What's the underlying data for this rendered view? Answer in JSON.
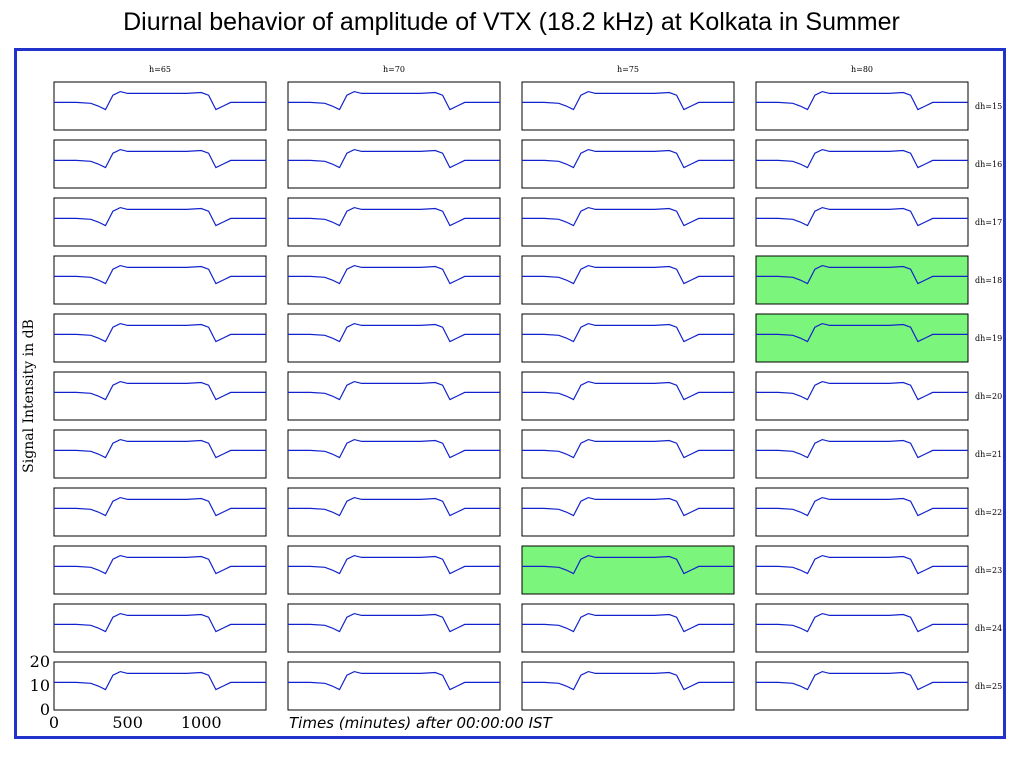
{
  "title": "Diurnal behavior of amplitude of VTX (18.2 kHz) at Kolkata in Summer",
  "colors": {
    "frame": "#2233cc",
    "line": "#1122cc",
    "highlight": "#7cf57c"
  },
  "chart_data": {
    "type": "line",
    "layout": "grid",
    "columns": [
      "h=65",
      "h=70",
      "h=75",
      "h=80"
    ],
    "rows": [
      "dh=15",
      "dh=16",
      "dh=17",
      "dh=18",
      "dh=19",
      "dh=20",
      "dh=21",
      "dh=22",
      "dh=23",
      "dh=24",
      "dh=25"
    ],
    "highlighted_panels": [
      {
        "column": "h=80",
        "row": "dh=18"
      },
      {
        "column": "h=80",
        "row": "dh=19"
      },
      {
        "column": "h=75",
        "row": "dh=23"
      }
    ],
    "ylabel": "Signal Intensity in dB",
    "xlabel": "Times (minutes) after 00:00:00 IST",
    "xlim": [
      0,
      1440
    ],
    "ylim": [
      0,
      20
    ],
    "xticks": [
      "0",
      "500",
      "1000"
    ],
    "yticks": [
      "20",
      "10",
      "0"
    ],
    "profile": {
      "x": [
        0,
        150,
        250,
        300,
        350,
        400,
        450,
        500,
        600,
        700,
        800,
        900,
        1000,
        1050,
        1100,
        1150,
        1200,
        1300,
        1440
      ],
      "y": [
        12,
        12,
        11.5,
        10,
        8,
        16,
        18,
        17,
        17,
        17,
        17,
        17,
        17.5,
        16,
        8,
        10,
        12,
        12,
        12
      ]
    }
  }
}
